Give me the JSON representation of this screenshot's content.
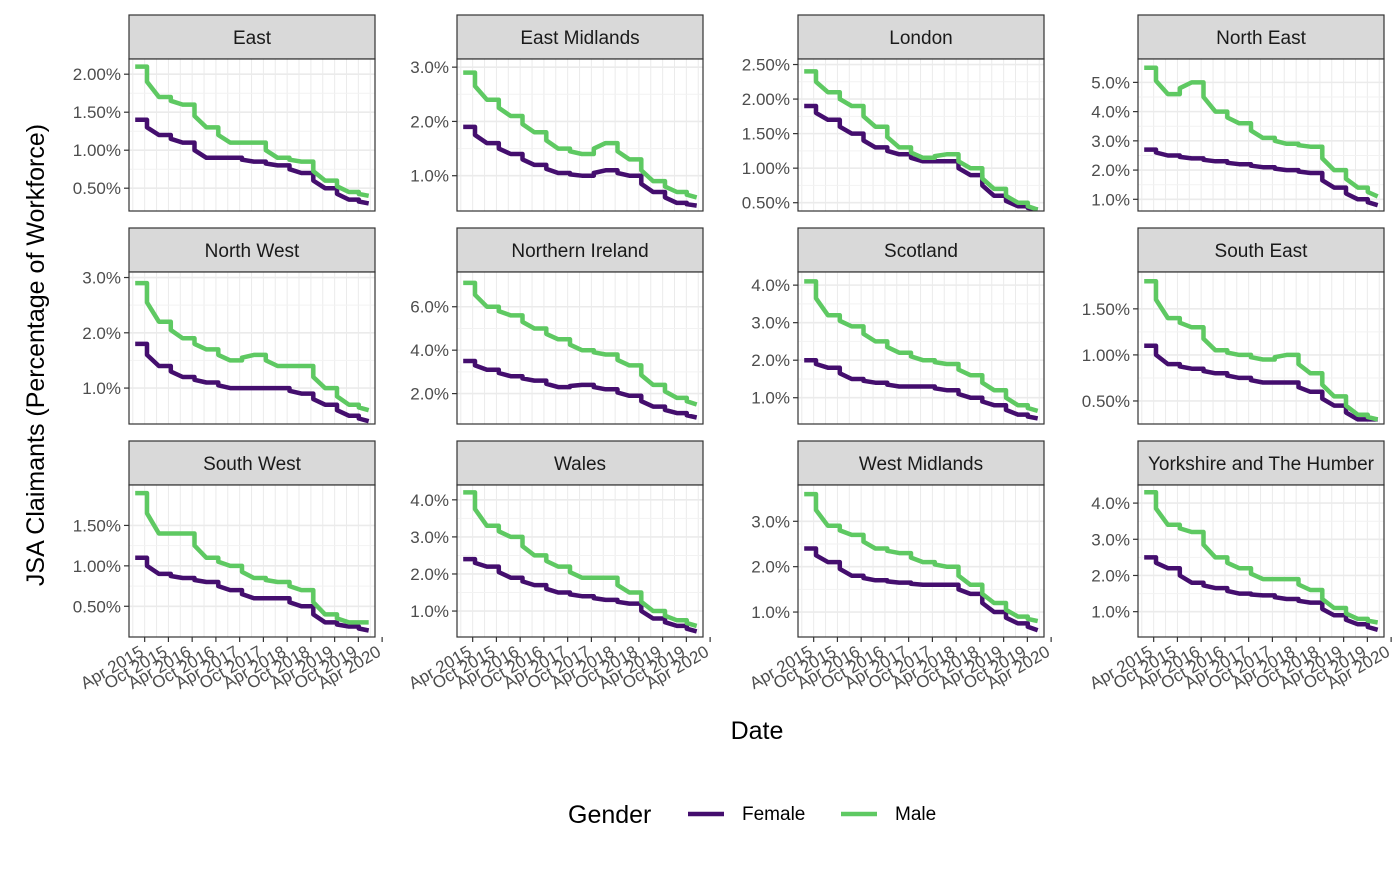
{
  "figure": {
    "ylabel": "JSA Claimants (Percentage of Workforce)",
    "xlabel": "Date",
    "legend": {
      "title": "Gender",
      "placement": "bottom",
      "entries": [
        {
          "label": "Female",
          "color": "#440e6e"
        },
        {
          "label": "Male",
          "color": "#5ec962"
        }
      ]
    },
    "x_tick_labels": [
      "Apr 2015",
      "Oct 2015",
      "Apr 2016",
      "Oct 2016",
      "Apr 2017",
      "Oct 2017",
      "Apr 2018",
      "Oct 2018",
      "Apr 2019",
      "Oct 2019",
      "Apr 2020"
    ],
    "colors": {
      "female": "#440e6e",
      "male": "#5ec962",
      "strip_fill": "#d9d9d9",
      "grid": "#ebebeb"
    }
  },
  "chart_data": [
    {
      "type": "line",
      "title": "East",
      "x": [
        "2015-01",
        "2015-07",
        "2016-01",
        "2016-07",
        "2017-01",
        "2017-07",
        "2018-01",
        "2018-07",
        "2019-01",
        "2019-07",
        "2019-12"
      ],
      "series": [
        {
          "name": "Female",
          "values": [
            1.4,
            1.2,
            1.1,
            0.9,
            0.9,
            0.85,
            0.8,
            0.7,
            0.5,
            0.35,
            0.3
          ]
        },
        {
          "name": "Male",
          "values": [
            2.1,
            1.7,
            1.6,
            1.3,
            1.1,
            1.1,
            0.9,
            0.85,
            0.6,
            0.45,
            0.4
          ]
        }
      ],
      "yticks": [
        "0.50%",
        "1.00%",
        "1.50%",
        "2.00%"
      ],
      "ytick_values": [
        0.5,
        1.0,
        1.5,
        2.0
      ],
      "ylim": [
        0.2,
        2.2
      ]
    },
    {
      "type": "line",
      "title": "East Midlands",
      "x": [
        "2015-01",
        "2015-07",
        "2016-01",
        "2016-07",
        "2017-01",
        "2017-07",
        "2018-01",
        "2018-07",
        "2019-01",
        "2019-07",
        "2019-12"
      ],
      "series": [
        {
          "name": "Female",
          "values": [
            1.9,
            1.6,
            1.4,
            1.2,
            1.05,
            1.0,
            1.1,
            1.0,
            0.7,
            0.5,
            0.45
          ]
        },
        {
          "name": "Male",
          "values": [
            2.9,
            2.4,
            2.1,
            1.8,
            1.5,
            1.4,
            1.6,
            1.3,
            0.9,
            0.7,
            0.6
          ]
        }
      ],
      "yticks": [
        "1.0%",
        "2.0%",
        "3.0%"
      ],
      "ytick_values": [
        1.0,
        2.0,
        3.0
      ],
      "ylim": [
        0.35,
        3.15
      ]
    },
    {
      "type": "line",
      "title": "London",
      "x": [
        "2015-01",
        "2015-07",
        "2016-01",
        "2016-07",
        "2017-01",
        "2017-07",
        "2018-01",
        "2018-07",
        "2019-01",
        "2019-07",
        "2019-12"
      ],
      "series": [
        {
          "name": "Female",
          "values": [
            1.9,
            1.7,
            1.5,
            1.3,
            1.2,
            1.1,
            1.1,
            0.9,
            0.6,
            0.45,
            0.4
          ]
        },
        {
          "name": "Male",
          "values": [
            2.4,
            2.1,
            1.9,
            1.6,
            1.3,
            1.15,
            1.2,
            1.0,
            0.7,
            0.5,
            0.4
          ]
        }
      ],
      "yticks": [
        "0.50%",
        "1.00%",
        "1.50%",
        "2.00%",
        "2.50%"
      ],
      "ytick_values": [
        0.5,
        1.0,
        1.5,
        2.0,
        2.5
      ],
      "ylim": [
        0.38,
        2.58
      ]
    },
    {
      "type": "line",
      "title": "North East",
      "x": [
        "2015-01",
        "2015-07",
        "2016-01",
        "2016-07",
        "2017-01",
        "2017-07",
        "2018-01",
        "2018-07",
        "2019-01",
        "2019-07",
        "2019-12"
      ],
      "series": [
        {
          "name": "Female",
          "values": [
            2.7,
            2.5,
            2.4,
            2.3,
            2.2,
            2.1,
            2.0,
            1.9,
            1.4,
            1.0,
            0.8
          ]
        },
        {
          "name": "Male",
          "values": [
            5.5,
            4.6,
            5.0,
            4.0,
            3.6,
            3.1,
            2.9,
            2.8,
            2.0,
            1.4,
            1.1
          ]
        }
      ],
      "yticks": [
        "1.0%",
        "2.0%",
        "3.0%",
        "4.0%",
        "5.0%"
      ],
      "ytick_values": [
        1.0,
        2.0,
        3.0,
        4.0,
        5.0
      ],
      "ylim": [
        0.6,
        5.8
      ]
    },
    {
      "type": "line",
      "title": "North West",
      "x": [
        "2015-01",
        "2015-07",
        "2016-01",
        "2016-07",
        "2017-01",
        "2017-07",
        "2018-01",
        "2018-07",
        "2019-01",
        "2019-07",
        "2019-12"
      ],
      "series": [
        {
          "name": "Female",
          "values": [
            1.8,
            1.4,
            1.2,
            1.1,
            1.0,
            1.0,
            1.0,
            0.9,
            0.7,
            0.5,
            0.4
          ]
        },
        {
          "name": "Male",
          "values": [
            2.9,
            2.2,
            1.9,
            1.7,
            1.5,
            1.6,
            1.4,
            1.4,
            1.0,
            0.7,
            0.6
          ]
        }
      ],
      "yticks": [
        "1.0%",
        "2.0%",
        "3.0%"
      ],
      "ytick_values": [
        1.0,
        2.0,
        3.0
      ],
      "ylim": [
        0.35,
        3.1
      ]
    },
    {
      "type": "line",
      "title": "Northern Ireland",
      "x": [
        "2015-01",
        "2015-07",
        "2016-01",
        "2016-07",
        "2017-01",
        "2017-07",
        "2018-01",
        "2018-07",
        "2019-01",
        "2019-07",
        "2019-12"
      ],
      "series": [
        {
          "name": "Female",
          "values": [
            3.5,
            3.1,
            2.8,
            2.6,
            2.3,
            2.4,
            2.2,
            1.9,
            1.4,
            1.1,
            0.9
          ]
        },
        {
          "name": "Male",
          "values": [
            7.1,
            6.0,
            5.6,
            5.0,
            4.5,
            4.0,
            3.8,
            3.3,
            2.4,
            1.8,
            1.5
          ]
        }
      ],
      "yticks": [
        "2.0%",
        "4.0%",
        "6.0%"
      ],
      "ytick_values": [
        2.0,
        4.0,
        6.0
      ],
      "ylim": [
        0.6,
        7.6
      ]
    },
    {
      "type": "line",
      "title": "Scotland",
      "x": [
        "2015-01",
        "2015-07",
        "2016-01",
        "2016-07",
        "2017-01",
        "2017-07",
        "2018-01",
        "2018-07",
        "2019-01",
        "2019-07",
        "2019-12"
      ],
      "series": [
        {
          "name": "Female",
          "values": [
            2.0,
            1.8,
            1.5,
            1.4,
            1.3,
            1.3,
            1.2,
            1.0,
            0.8,
            0.55,
            0.45
          ]
        },
        {
          "name": "Male",
          "values": [
            4.1,
            3.2,
            2.9,
            2.5,
            2.2,
            2.0,
            1.9,
            1.6,
            1.2,
            0.8,
            0.65
          ]
        }
      ],
      "yticks": [
        "1.0%",
        "2.0%",
        "3.0%",
        "4.0%"
      ],
      "ytick_values": [
        1.0,
        2.0,
        3.0,
        4.0
      ],
      "ylim": [
        0.3,
        4.35
      ]
    },
    {
      "type": "line",
      "title": "South East",
      "x": [
        "2015-01",
        "2015-07",
        "2016-01",
        "2016-07",
        "2017-01",
        "2017-07",
        "2018-01",
        "2018-07",
        "2019-01",
        "2019-07",
        "2019-12"
      ],
      "series": [
        {
          "name": "Female",
          "values": [
            1.1,
            0.9,
            0.85,
            0.8,
            0.75,
            0.7,
            0.7,
            0.6,
            0.45,
            0.3,
            0.3
          ]
        },
        {
          "name": "Male",
          "values": [
            1.8,
            1.4,
            1.3,
            1.05,
            1.0,
            0.95,
            1.0,
            0.8,
            0.55,
            0.35,
            0.3
          ]
        }
      ],
      "yticks": [
        "0.50%",
        "1.00%",
        "1.50%"
      ],
      "ytick_values": [
        0.5,
        1.0,
        1.5
      ],
      "ylim": [
        0.25,
        1.9
      ]
    },
    {
      "type": "line",
      "title": "South West",
      "x": [
        "2015-01",
        "2015-07",
        "2016-01",
        "2016-07",
        "2017-01",
        "2017-07",
        "2018-01",
        "2018-07",
        "2019-01",
        "2019-07",
        "2019-12"
      ],
      "series": [
        {
          "name": "Female",
          "values": [
            1.1,
            0.9,
            0.85,
            0.8,
            0.7,
            0.6,
            0.6,
            0.5,
            0.3,
            0.25,
            0.2
          ]
        },
        {
          "name": "Male",
          "values": [
            1.9,
            1.4,
            1.4,
            1.1,
            1.0,
            0.85,
            0.8,
            0.7,
            0.4,
            0.3,
            0.3
          ]
        }
      ],
      "yticks": [
        "0.50%",
        "1.00%",
        "1.50%"
      ],
      "ytick_values": [
        0.5,
        1.0,
        1.5
      ],
      "ylim": [
        0.12,
        2.0
      ]
    },
    {
      "type": "line",
      "title": "Wales",
      "x": [
        "2015-01",
        "2015-07",
        "2016-01",
        "2016-07",
        "2017-01",
        "2017-07",
        "2018-01",
        "2018-07",
        "2019-01",
        "2019-07",
        "2019-12"
      ],
      "series": [
        {
          "name": "Female",
          "values": [
            2.4,
            2.2,
            1.9,
            1.7,
            1.5,
            1.4,
            1.3,
            1.2,
            0.8,
            0.6,
            0.45
          ]
        },
        {
          "name": "Male",
          "values": [
            4.2,
            3.3,
            3.0,
            2.5,
            2.2,
            1.9,
            1.9,
            1.5,
            1.0,
            0.75,
            0.6
          ]
        }
      ],
      "yticks": [
        "1.0%",
        "2.0%",
        "3.0%",
        "4.0%"
      ],
      "ytick_values": [
        1.0,
        2.0,
        3.0,
        4.0
      ],
      "ylim": [
        0.3,
        4.4
      ]
    },
    {
      "type": "line",
      "title": "West Midlands",
      "x": [
        "2015-01",
        "2015-07",
        "2016-01",
        "2016-07",
        "2017-01",
        "2017-07",
        "2018-01",
        "2018-07",
        "2019-01",
        "2019-07",
        "2019-12"
      ],
      "series": [
        {
          "name": "Female",
          "values": [
            2.4,
            2.1,
            1.8,
            1.7,
            1.65,
            1.6,
            1.6,
            1.4,
            1.0,
            0.75,
            0.6
          ]
        },
        {
          "name": "Male",
          "values": [
            3.6,
            2.9,
            2.7,
            2.4,
            2.3,
            2.1,
            2.0,
            1.6,
            1.2,
            0.9,
            0.8
          ]
        }
      ],
      "yticks": [
        "1.0%",
        "2.0%",
        "3.0%"
      ],
      "ytick_values": [
        1.0,
        2.0,
        3.0
      ],
      "ylim": [
        0.45,
        3.8
      ]
    },
    {
      "type": "line",
      "title": "Yorkshire and The Humber",
      "x": [
        "2015-01",
        "2015-07",
        "2016-01",
        "2016-07",
        "2017-01",
        "2017-07",
        "2018-01",
        "2018-07",
        "2019-01",
        "2019-07",
        "2019-12"
      ],
      "series": [
        {
          "name": "Female",
          "values": [
            2.5,
            2.2,
            1.8,
            1.65,
            1.5,
            1.45,
            1.35,
            1.25,
            0.9,
            0.65,
            0.5
          ]
        },
        {
          "name": "Male",
          "values": [
            4.3,
            3.4,
            3.2,
            2.5,
            2.2,
            1.9,
            1.9,
            1.6,
            1.1,
            0.8,
            0.7
          ]
        }
      ],
      "yticks": [
        "1.0%",
        "2.0%",
        "3.0%",
        "4.0%"
      ],
      "ytick_values": [
        1.0,
        2.0,
        3.0,
        4.0
      ],
      "ylim": [
        0.3,
        4.5
      ]
    }
  ]
}
